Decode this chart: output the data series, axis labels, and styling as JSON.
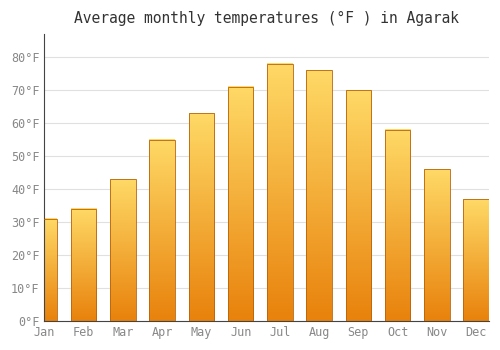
{
  "title": "Average monthly temperatures (°F ) in Agarak",
  "months": [
    "Jan",
    "Feb",
    "Mar",
    "Apr",
    "May",
    "Jun",
    "Jul",
    "Aug",
    "Sep",
    "Oct",
    "Nov",
    "Dec"
  ],
  "values": [
    31,
    34,
    43,
    55,
    63,
    71,
    78,
    76,
    70,
    58,
    46,
    37
  ],
  "bar_color_main": "#FDB515",
  "bar_color_top": "#FFD966",
  "bar_color_bottom": "#E8820C",
  "bar_edge_color": "#B8620A",
  "background_color": "#FFFFFF",
  "grid_color": "#E0E0E0",
  "ylim": [
    0,
    87
  ],
  "yticks": [
    0,
    10,
    20,
    30,
    40,
    50,
    60,
    70,
    80
  ],
  "title_fontsize": 10.5,
  "tick_fontsize": 8.5,
  "tick_color": "#888888",
  "figsize": [
    5.0,
    3.5
  ],
  "dpi": 100
}
